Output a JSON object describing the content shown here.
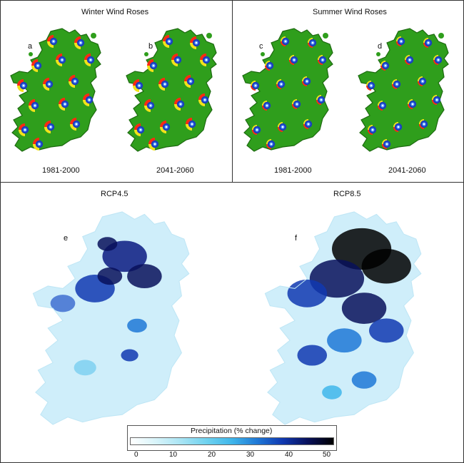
{
  "top_left": {
    "title": "Winter Wind Roses",
    "maps": [
      {
        "label": "a",
        "period": "1981-2000"
      },
      {
        "label": "b",
        "period": "2041-2060"
      }
    ]
  },
  "top_right": {
    "title": "Summer Wind Roses",
    "maps": [
      {
        "label": "c",
        "period": "1981-2000"
      },
      {
        "label": "d",
        "period": "2041-2060"
      }
    ]
  },
  "bottom": {
    "maps": [
      {
        "label": "e",
        "scenario": "RCP4.5"
      },
      {
        "label": "f",
        "scenario": "RCP8.5"
      }
    ]
  },
  "colorbar": {
    "title": "Precipitation (% change)",
    "ticks": [
      "0",
      "10",
      "20",
      "30",
      "40",
      "50"
    ],
    "colors": [
      "#ffffff",
      "#d8f4fa",
      "#a8e4f4",
      "#6fd2ef",
      "#3fb6ea",
      "#1f78d6",
      "#1038b0",
      "#08105a",
      "#000000"
    ]
  },
  "colors": {
    "land_green": "#2f9e1c",
    "rose_blue": "#1a3fbf",
    "rose_red": "#ff2a12",
    "rose_yellow": "#f2e21a"
  }
}
